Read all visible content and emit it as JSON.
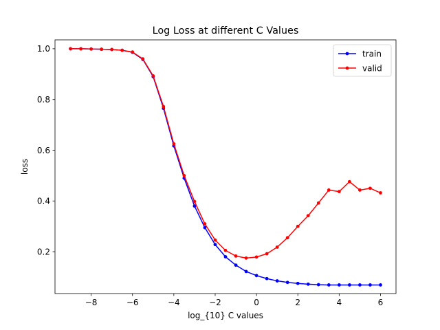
{
  "chart_data": {
    "type": "line",
    "title": "Log Loss at different C Values",
    "xlabel": "log_{10} C values",
    "ylabel": "loss",
    "xlim": [
      -9.75,
      6.75
    ],
    "ylim": [
      0.035,
      1.035
    ],
    "xticks": [
      -8,
      -6,
      -4,
      -2,
      0,
      2,
      4,
      6
    ],
    "xtick_labels": [
      "−8",
      "−6",
      "−4",
      "−2",
      "0",
      "2",
      "4",
      "6"
    ],
    "yticks": [
      0.2,
      0.4,
      0.6,
      0.8,
      1.0
    ],
    "ytick_labels": [
      "0.2",
      "0.4",
      "0.6",
      "0.8",
      "1.0"
    ],
    "grid": false,
    "legend_position": "top-right",
    "x": [
      -9,
      -8.5,
      -8,
      -7.5,
      -7,
      -6.5,
      -6,
      -5.5,
      -5,
      -4.5,
      -4,
      -3.5,
      -3,
      -2.5,
      -2,
      -1.5,
      -1,
      -0.5,
      0,
      0.5,
      1,
      1.5,
      2,
      2.5,
      3,
      3.5,
      4,
      4.5,
      5,
      5.5,
      6
    ],
    "series": [
      {
        "name": "train",
        "color": "#0000ff",
        "values": [
          1.0,
          1.0,
          0.999,
          0.998,
          0.997,
          0.994,
          0.986,
          0.958,
          0.89,
          0.765,
          0.617,
          0.49,
          0.38,
          0.295,
          0.228,
          0.18,
          0.147,
          0.122,
          0.106,
          0.094,
          0.085,
          0.079,
          0.075,
          0.072,
          0.07,
          0.069,
          0.069,
          0.069,
          0.069,
          0.069,
          0.069
        ]
      },
      {
        "name": "valid",
        "color": "#ff0000",
        "values": [
          1.0,
          1.0,
          0.999,
          0.998,
          0.997,
          0.994,
          0.987,
          0.96,
          0.893,
          0.772,
          0.625,
          0.5,
          0.398,
          0.31,
          0.246,
          0.205,
          0.183,
          0.175,
          0.179,
          0.192,
          0.218,
          0.255,
          0.3,
          0.342,
          0.392,
          0.443,
          0.437,
          0.476,
          0.443,
          0.45,
          0.432
        ]
      }
    ]
  }
}
